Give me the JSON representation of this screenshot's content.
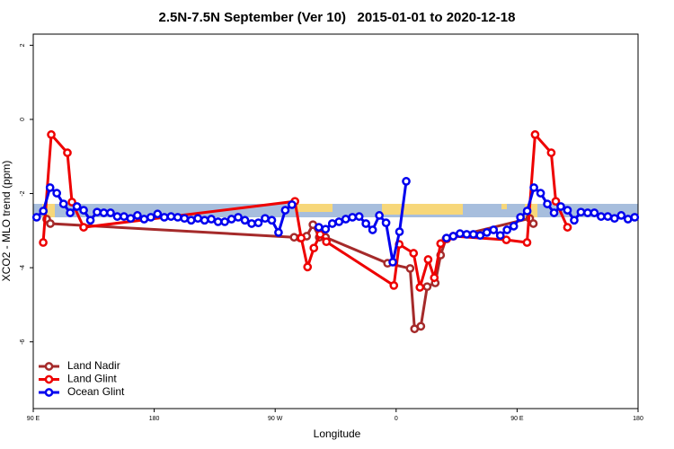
{
  "chart_data": {
    "type": "line",
    "title": "2.5N-7.5N September (Ver 10)   2015-01-01 to 2020-12-18",
    "x_label": "Longitude",
    "y_label": "XCO2 - MLO trend (ppm)",
    "xlim": [
      90,
      540
    ],
    "ylim": [
      -7.8,
      2.3
    ],
    "xticks": [
      {
        "value": 90,
        "label": "90 E"
      },
      180,
      {
        "value": 270,
        "label": "90 W"
      },
      {
        "value": 360,
        "label": "0"
      },
      {
        "value": 450,
        "label": "90 E"
      },
      {
        "value": 540,
        "label": "180"
      }
    ],
    "yticks": [
      -6,
      -4,
      -2,
      0,
      2
    ],
    "legend": "bottom-left",
    "series": [
      {
        "name": "Land Nadir",
        "color": "#a52a2a",
        "x": [
          100.0,
          102.7,
          284.1,
          288.7,
          293.4,
          298.1,
          302.8,
          307.5,
          353.6,
          370.4,
          373.7,
          378.4,
          383.1,
          389.1,
          393.1,
          397.1,
          459.4,
          462.1
        ],
        "values": [
          -2.69,
          -2.81,
          -3.18,
          -3.2,
          -3.15,
          -2.84,
          -3.18,
          -3.18,
          -3.88,
          -4.02,
          -5.65,
          -5.58,
          -4.51,
          -4.41,
          -3.66,
          -3.22,
          -2.67,
          -2.81
        ]
      },
      {
        "name": "Land Glint",
        "color": "#ee0000",
        "x": [
          97.4,
          103.4,
          115.4,
          118.8,
          127.5,
          284.7,
          289.4,
          294.1,
          298.8,
          303.5,
          308.1,
          358.3,
          362.3,
          373.0,
          377.7,
          383.8,
          388.4,
          393.1,
          397.8,
          402.5,
          442.0,
          457.4,
          463.4,
          475.4,
          478.8,
          487.5
        ],
        "values": [
          -3.32,
          -0.41,
          -0.9,
          -2.23,
          -2.91,
          -2.21,
          -3.2,
          -3.98,
          -3.47,
          -3.1,
          -3.3,
          -4.48,
          -3.37,
          -3.61,
          -4.53,
          -3.78,
          -4.27,
          -3.35,
          -3.22,
          -3.15,
          -3.25,
          -3.32,
          -0.41,
          -0.9,
          -2.21,
          -2.91
        ]
      },
      {
        "name": "Ocean Glint",
        "color": "#0000ee",
        "x": [
          92.5,
          97.5,
          102.5,
          107.5,
          112.5,
          117.5,
          122.5,
          127.5,
          132.5,
          137.5,
          142.5,
          147.5,
          152.5,
          157.5,
          162.5,
          167.5,
          172.5,
          177.5,
          182.5,
          187.5,
          192.5,
          197.5,
          202.5,
          207.5,
          212.5,
          217.5,
          222.5,
          227.5,
          232.5,
          237.5,
          242.5,
          247.5,
          252.5,
          257.5,
          262.5,
          267.5,
          272.5,
          277.5,
          282.5,
          287.5,
          292.5,
          297.5,
          302.5,
          307.5,
          312.5,
          317.5,
          322.5,
          327.5,
          332.5,
          337.5,
          342.5,
          347.5,
          352.5,
          357.5,
          362.5,
          367.5,
          372.5,
          377.5,
          382.5,
          387.5,
          392.5,
          397.5,
          402.5,
          407.5,
          412.5,
          417.5,
          422.5,
          427.5,
          432.5,
          437.5,
          442.5,
          447.5,
          452.5,
          457.5,
          462.5,
          467.5,
          472.5,
          477.5,
          482.5,
          487.5,
          492.5,
          497.5,
          502.5,
          507.5,
          512.5,
          517.5,
          522.5,
          527.5,
          532.5,
          537.5
        ],
        "values": [
          -2.64,
          -2.47,
          -1.84,
          -1.99,
          -2.28,
          -2.52,
          -2.35,
          -2.45,
          -2.72,
          -2.5,
          -2.52,
          -2.52,
          -2.62,
          -2.62,
          -2.67,
          -2.59,
          -2.69,
          -2.64,
          -2.55,
          -2.64,
          -2.62,
          -2.64,
          -2.67,
          -2.72,
          -2.67,
          -2.72,
          -2.69,
          -2.76,
          -2.76,
          -2.69,
          -2.64,
          -2.72,
          -2.81,
          -2.79,
          -2.67,
          -2.72,
          -3.05,
          -2.45,
          -2.3,
          null,
          null,
          null,
          -2.91,
          -2.96,
          -2.81,
          -2.76,
          -2.69,
          -2.64,
          -2.62,
          -2.81,
          -2.98,
          -2.59,
          -2.79,
          -3.85,
          -3.03,
          -1.67,
          null,
          null,
          null,
          null,
          null,
          -3.2,
          -3.15,
          -3.08,
          -3.1,
          -3.1,
          -3.13,
          -3.05,
          -2.98,
          -3.13,
          -2.98,
          -2.88,
          -2.64,
          -2.47,
          -1.84,
          -1.99,
          -2.28,
          -2.52,
          -2.35,
          -2.45,
          -2.72,
          -2.5,
          -2.52,
          -2.52,
          -2.62,
          -2.62,
          -2.67,
          -2.59,
          -2.69,
          -2.64
        ]
      }
    ]
  }
}
